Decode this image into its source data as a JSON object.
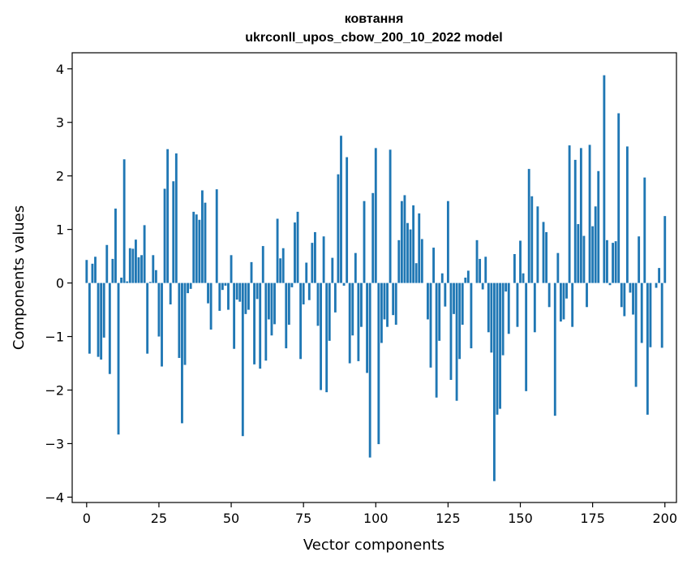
{
  "chart_data": {
    "type": "bar",
    "title_line1": "ковтання",
    "title_line2": "ukrconll_upos_cbow_200_10_2022 model",
    "xlabel": "Vector components",
    "ylabel": "Components values",
    "xlim": [
      -5,
      204
    ],
    "ylim": [
      -4.1,
      4.3
    ],
    "x_ticks": [
      0,
      25,
      50,
      75,
      100,
      125,
      150,
      175,
      200
    ],
    "y_ticks": [
      -4,
      -3,
      -2,
      -1,
      0,
      1,
      2,
      3,
      4
    ],
    "y_tick_labels": [
      "−4",
      "−3",
      "−2",
      "−1",
      "0",
      "1",
      "2",
      "3",
      "4"
    ],
    "bar_color": "#1f77b4",
    "grid": false,
    "values": [
      0.43,
      -1.32,
      0.36,
      0.49,
      -1.38,
      -1.43,
      -1.02,
      0.71,
      -1.7,
      0.45,
      1.39,
      -2.83,
      0.1,
      2.31,
      0.03,
      0.65,
      0.64,
      0.81,
      0.48,
      0.52,
      1.08,
      -1.32,
      0.02,
      0.52,
      0.24,
      -1.0,
      -1.56,
      1.76,
      2.5,
      -0.4,
      1.9,
      2.42,
      -1.4,
      -2.62,
      -1.53,
      -0.19,
      -0.11,
      1.33,
      1.28,
      1.18,
      1.73,
      1.5,
      -0.38,
      -0.87,
      0.0,
      1.75,
      -0.52,
      -0.13,
      -0.05,
      -0.5,
      0.52,
      -1.23,
      -0.31,
      -0.35,
      -2.86,
      -0.58,
      -0.5,
      0.39,
      -1.52,
      -0.3,
      -1.6,
      0.69,
      -1.45,
      -0.68,
      -0.98,
      -0.77,
      1.2,
      0.46,
      0.65,
      -1.22,
      -0.78,
      -0.08,
      1.13,
      1.33,
      -1.42,
      -0.4,
      0.38,
      -0.32,
      0.75,
      0.95,
      -0.8,
      -2.0,
      0.87,
      -2.04,
      -1.08,
      0.47,
      -0.55,
      2.03,
      2.75,
      -0.05,
      2.35,
      -1.5,
      -0.98,
      0.56,
      -1.46,
      -0.82,
      1.53,
      -1.68,
      -3.26,
      1.68,
      2.52,
      -3.01,
      -1.12,
      -0.68,
      -0.82,
      2.49,
      -0.6,
      -0.78,
      0.8,
      1.53,
      1.64,
      1.12,
      1.0,
      1.45,
      0.37,
      1.3,
      0.82,
      0.0,
      -0.68,
      -1.58,
      0.66,
      -2.14,
      -1.08,
      0.18,
      -0.44,
      1.53,
      -1.81,
      -0.58,
      -2.2,
      -1.42,
      -0.78,
      0.1,
      0.23,
      -1.22,
      0.0,
      0.8,
      0.45,
      -0.12,
      0.49,
      -0.92,
      -1.3,
      -3.7,
      -2.46,
      -2.35,
      -1.35,
      -0.16,
      -0.95,
      0.0,
      0.54,
      -0.82,
      0.79,
      0.18,
      -2.02,
      2.13,
      1.62,
      -0.92,
      1.43,
      0.0,
      1.14,
      0.95,
      -0.45,
      0.0,
      -2.48,
      0.56,
      -0.72,
      -0.68,
      -0.29,
      2.57,
      -0.82,
      2.3,
      1.1,
      2.52,
      0.88,
      -0.45,
      2.58,
      1.06,
      1.43,
      2.09,
      0.0,
      3.88,
      0.8,
      -0.04,
      0.75,
      0.78,
      3.17,
      -0.45,
      -0.62,
      2.55,
      -0.18,
      -0.59,
      -1.94,
      0.87,
      -1.12,
      1.97,
      -2.46,
      -1.2,
      0.0,
      -0.09,
      0.28,
      -1.21,
      1.25
    ]
  }
}
